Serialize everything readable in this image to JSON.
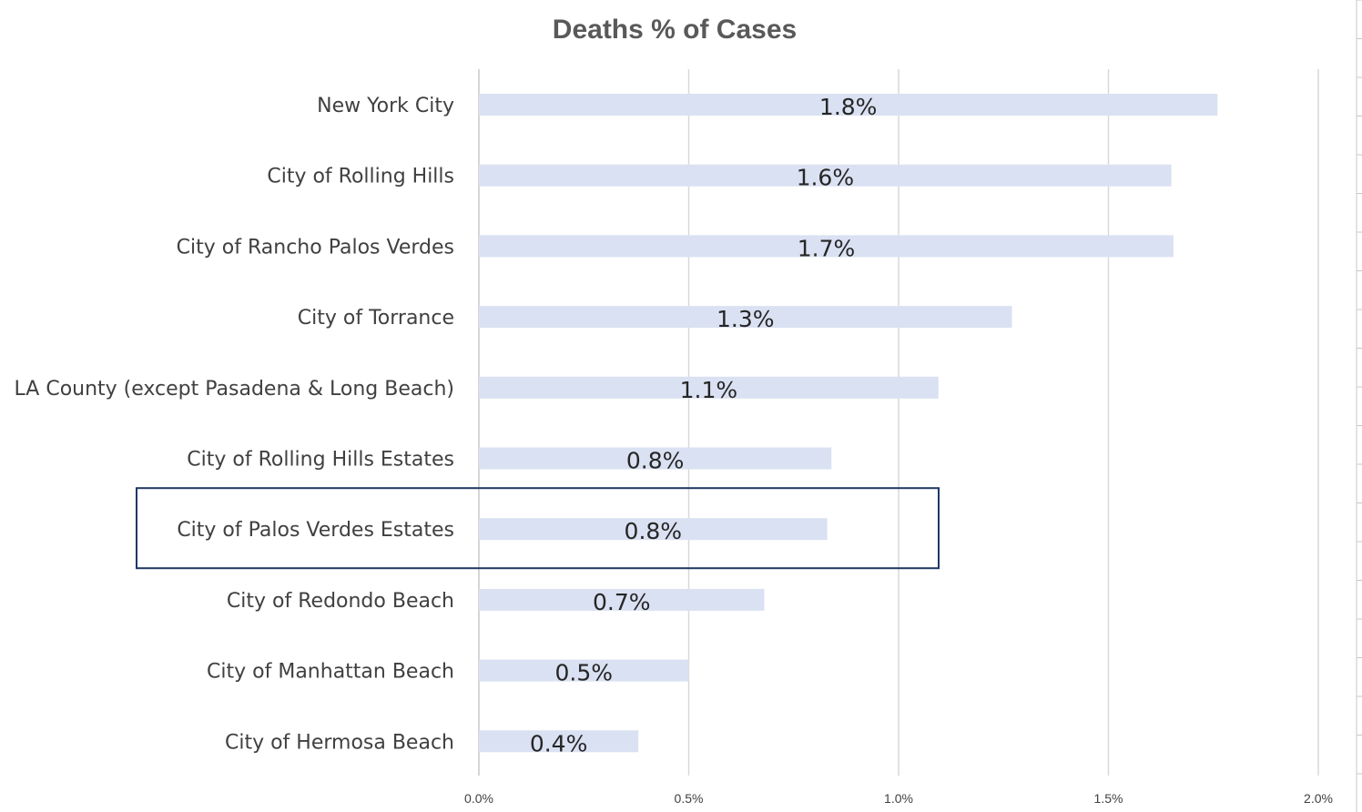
{
  "chart_data": {
    "type": "bar",
    "orientation": "horizontal",
    "title": "Deaths % of Cases",
    "xlabel": "",
    "ylabel": "",
    "categories": [
      "New York City",
      "City of Rolling Hills",
      "City of Rancho Palos Verdes",
      "City of Torrance",
      "LA County (except Pasadena & Long Beach)",
      "City of Rolling Hills Estates",
      "City of Palos Verdes Estates",
      "City of Redondo Beach",
      "City of Manhattan Beach",
      "City of Hermosa Beach"
    ],
    "values": [
      0.0176,
      0.0165,
      0.01655,
      0.0127,
      0.01095,
      0.0084,
      0.0083,
      0.0068,
      0.005,
      0.0038
    ],
    "data_labels": [
      "1.8%",
      "1.6%",
      "1.7%",
      "1.3%",
      "1.1%",
      "0.8%",
      "0.8%",
      "0.7%",
      "0.5%",
      "0.4%"
    ],
    "xlim": [
      0,
      0.02
    ],
    "xticks": [
      0,
      0.005,
      0.01,
      0.015,
      0.02
    ],
    "xtick_labels": [
      "0.0%",
      "0.5%",
      "1.0%",
      "1.5%",
      "2.0%"
    ],
    "grid": true,
    "legend": "none",
    "highlighted_category": "City of Palos Verdes Estates",
    "colors": {
      "bar": "#dae1f2",
      "highlight_box": "#1f3864",
      "gridline": "#d9d9d9",
      "title": "#595959"
    }
  }
}
